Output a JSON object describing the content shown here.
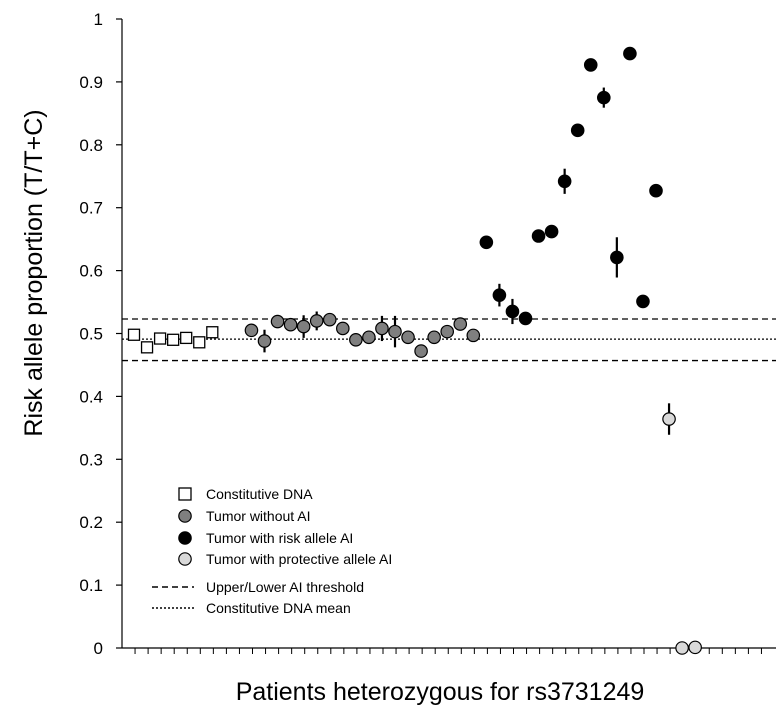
{
  "chart_data": {
    "type": "scatter",
    "xlabel": "Patients heterozygous for rs3731249",
    "ylabel": "Risk allele proportion (T/T+C)",
    "xlim": [
      0,
      49
    ],
    "ylim": [
      0,
      1
    ],
    "yticks": [
      "0",
      "0.1",
      "0.2",
      "0.3",
      "0.4",
      "0.5",
      "0.6",
      "0.7",
      "0.8",
      "0.9",
      "1"
    ],
    "grid": false,
    "legend_position": "bottom-left",
    "reference_lines": [
      {
        "name": "Upper/Lower AI threshold",
        "style": "dashed",
        "values": [
          0.523,
          0.457
        ]
      },
      {
        "name": "Constitutive DNA mean",
        "style": "dotted",
        "values": [
          0.491
        ]
      }
    ],
    "series": [
      {
        "name": "Constitutive DNA",
        "marker": "square-open",
        "color": "#ffffff",
        "points": [
          {
            "x": 1,
            "y": 0.498,
            "err": 0
          },
          {
            "x": 2,
            "y": 0.478,
            "err": 0
          },
          {
            "x": 3,
            "y": 0.492,
            "err": 0
          },
          {
            "x": 4,
            "y": 0.49,
            "err": 0
          },
          {
            "x": 5,
            "y": 0.493,
            "err": 0
          },
          {
            "x": 6,
            "y": 0.486,
            "err": 0
          },
          {
            "x": 7,
            "y": 0.502,
            "err": 0
          }
        ]
      },
      {
        "name": "Tumor without AI",
        "marker": "circle",
        "color": "#7f7f7f",
        "points": [
          {
            "x": 10,
            "y": 0.505,
            "err": 0.01
          },
          {
            "x": 11,
            "y": 0.488,
            "err": 0.018
          },
          {
            "x": 12,
            "y": 0.519,
            "err": 0.006
          },
          {
            "x": 13,
            "y": 0.514,
            "err": 0.006
          },
          {
            "x": 14,
            "y": 0.511,
            "err": 0.018
          },
          {
            "x": 15,
            "y": 0.52,
            "err": 0.015
          },
          {
            "x": 16,
            "y": 0.522,
            "err": 0.006
          },
          {
            "x": 17,
            "y": 0.508,
            "err": 0.006
          },
          {
            "x": 18,
            "y": 0.49,
            "err": 0.006
          },
          {
            "x": 19,
            "y": 0.494,
            "err": 0.006
          },
          {
            "x": 20,
            "y": 0.508,
            "err": 0.02
          },
          {
            "x": 21,
            "y": 0.503,
            "err": 0.025
          },
          {
            "x": 22,
            "y": 0.494,
            "err": 0.006
          },
          {
            "x": 23,
            "y": 0.472,
            "err": 0.006
          },
          {
            "x": 24,
            "y": 0.494,
            "err": 0.006
          },
          {
            "x": 25,
            "y": 0.503,
            "err": 0.006
          },
          {
            "x": 26,
            "y": 0.515,
            "err": 0.006
          },
          {
            "x": 27,
            "y": 0.497,
            "err": 0.006
          }
        ]
      },
      {
        "name": "Tumor with risk allele AI",
        "marker": "circle",
        "color": "#000000",
        "points": [
          {
            "x": 28,
            "y": 0.645,
            "err": 0.01
          },
          {
            "x": 29,
            "y": 0.561,
            "err": 0.018
          },
          {
            "x": 30,
            "y": 0.535,
            "err": 0.02
          },
          {
            "x": 31,
            "y": 0.524,
            "err": 0.006
          },
          {
            "x": 32,
            "y": 0.655,
            "err": 0.006
          },
          {
            "x": 33,
            "y": 0.662,
            "err": 0.006
          },
          {
            "x": 34,
            "y": 0.742,
            "err": 0.02
          },
          {
            "x": 35,
            "y": 0.823,
            "err": 0.006
          },
          {
            "x": 36,
            "y": 0.927,
            "err": 0.006
          },
          {
            "x": 37,
            "y": 0.875,
            "err": 0.016
          },
          {
            "x": 38,
            "y": 0.621,
            "err": 0.032
          },
          {
            "x": 39,
            "y": 0.945,
            "err": 0.006
          },
          {
            "x": 40,
            "y": 0.551,
            "err": 0.006
          },
          {
            "x": 41,
            "y": 0.727,
            "err": 0.006
          }
        ]
      },
      {
        "name": "Tumor with protective allele AI",
        "marker": "circle",
        "color": "#d9d9d9",
        "points": [
          {
            "x": 42,
            "y": 0.364,
            "err": 0.025
          },
          {
            "x": 43,
            "y": 0.0,
            "err": 0
          },
          {
            "x": 44,
            "y": 0.001,
            "err": 0
          }
        ]
      }
    ]
  }
}
